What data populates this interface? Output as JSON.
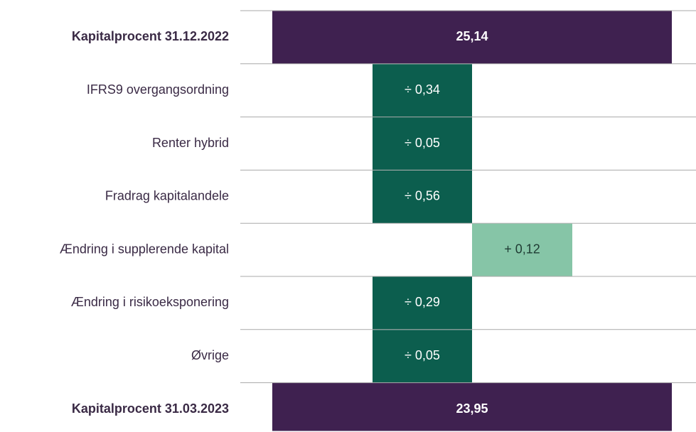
{
  "rows": [
    {
      "label": "Kapitalprocent 31.12.2022",
      "value": "25,14",
      "kind": "total",
      "color": "#3f2150"
    },
    {
      "label": "IFRS9 overgangsordning",
      "value": "÷ 0,34",
      "kind": "decrease",
      "color": "#0c5e4e"
    },
    {
      "label": "Renter hybrid",
      "value": "÷ 0,05",
      "kind": "decrease",
      "color": "#0c5e4e"
    },
    {
      "label": "Fradrag kapitalandele",
      "value": "÷ 0,56",
      "kind": "decrease",
      "color": "#0c5e4e"
    },
    {
      "label": "Ændring i supplerende kapital",
      "value": "+ 0,12",
      "kind": "increase",
      "color": "#86c5a7"
    },
    {
      "label": "Ændring i risikoeksponering",
      "value": "÷ 0,29",
      "kind": "decrease",
      "color": "#0c5e4e"
    },
    {
      "label": "Øvrige",
      "value": "÷ 0,05",
      "kind": "decrease",
      "color": "#0c5e4e"
    },
    {
      "label": "Kapitalprocent 31.03.2023",
      "value": "23,95",
      "kind": "total",
      "color": "#3f2150"
    }
  ]
}
